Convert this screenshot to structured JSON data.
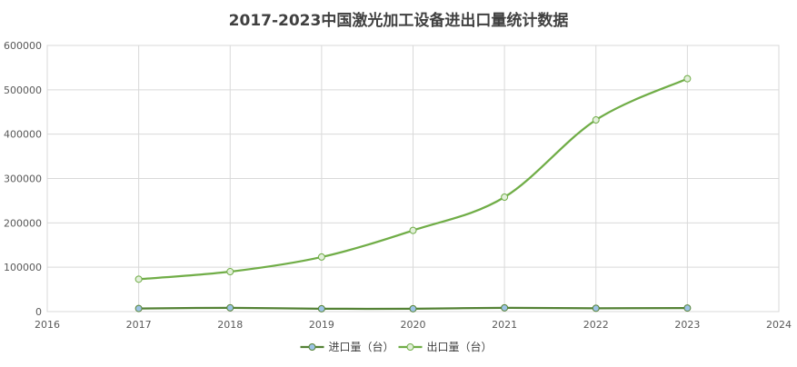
{
  "chart_data": {
    "type": "scatter",
    "title": "2017-2023中国激光加工设备进出口量统计数据",
    "xlim": [
      2016,
      2024
    ],
    "ylim": [
      0,
      600000
    ],
    "x_ticks": [
      "2016",
      "2017",
      "2018",
      "2019",
      "2020",
      "2021",
      "2022",
      "2023",
      "2024"
    ],
    "y_ticks": [
      "0",
      "100000",
      "200000",
      "300000",
      "400000",
      "500000",
      "600000"
    ],
    "grid": true,
    "legend_position": "bottom",
    "series": [
      {
        "name": "进口量（台）",
        "color": "#548235",
        "marker_fill": "#9dc3e6",
        "x": [
          2017,
          2018,
          2019,
          2020,
          2021,
          2022,
          2023
        ],
        "y": [
          7000,
          8500,
          6500,
          6500,
          8500,
          7500,
          8000
        ]
      },
      {
        "name": "出口量（台）",
        "color": "#70ad47",
        "marker_fill": "#e2efda",
        "x": [
          2017,
          2018,
          2019,
          2020,
          2021,
          2022,
          2023
        ],
        "y": [
          73000,
          90000,
          123000,
          183000,
          258000,
          432000,
          525000
        ]
      }
    ]
  }
}
